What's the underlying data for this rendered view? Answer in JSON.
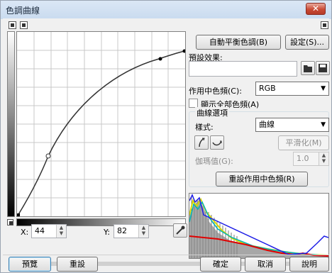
{
  "window": {
    "title": "色調曲線",
    "close_glyph": "✕"
  },
  "buttons": {
    "auto_balance": "自動平衡色調(B)",
    "settings": "設定(S)...",
    "smooth": "平滑化(M)",
    "reset_channel": "重設作用中色頻(R)",
    "preview": "預覽",
    "reset": "重設",
    "ok": "確定",
    "cancel": "取消",
    "help": "說明"
  },
  "presets": {
    "label": "預設效果:",
    "value": ""
  },
  "channel": {
    "label": "作用中色頻(C):",
    "value": "RGB"
  },
  "show_all": {
    "label": "顯示全部色頻(A)",
    "checked": false
  },
  "curve_options": {
    "group_label": "曲線選項",
    "style_label": "樣式:",
    "style_value": "曲線",
    "gamma_label": "伽瑪值(G):",
    "gamma_value": "1.0"
  },
  "coords": {
    "x_label": "X:",
    "x_value": "44",
    "y_label": "Y:",
    "y_value": "82"
  },
  "colors": {
    "accent": "#3c7fb1",
    "close": "#c94a35"
  },
  "icons": {
    "open": "folder-open-icon",
    "save": "floppy-save-icon",
    "flip_vertical": "flip-vertical-icon",
    "flip_horizontal": "flip-horizontal-icon",
    "eyedropper": "eyedropper-icon"
  }
}
